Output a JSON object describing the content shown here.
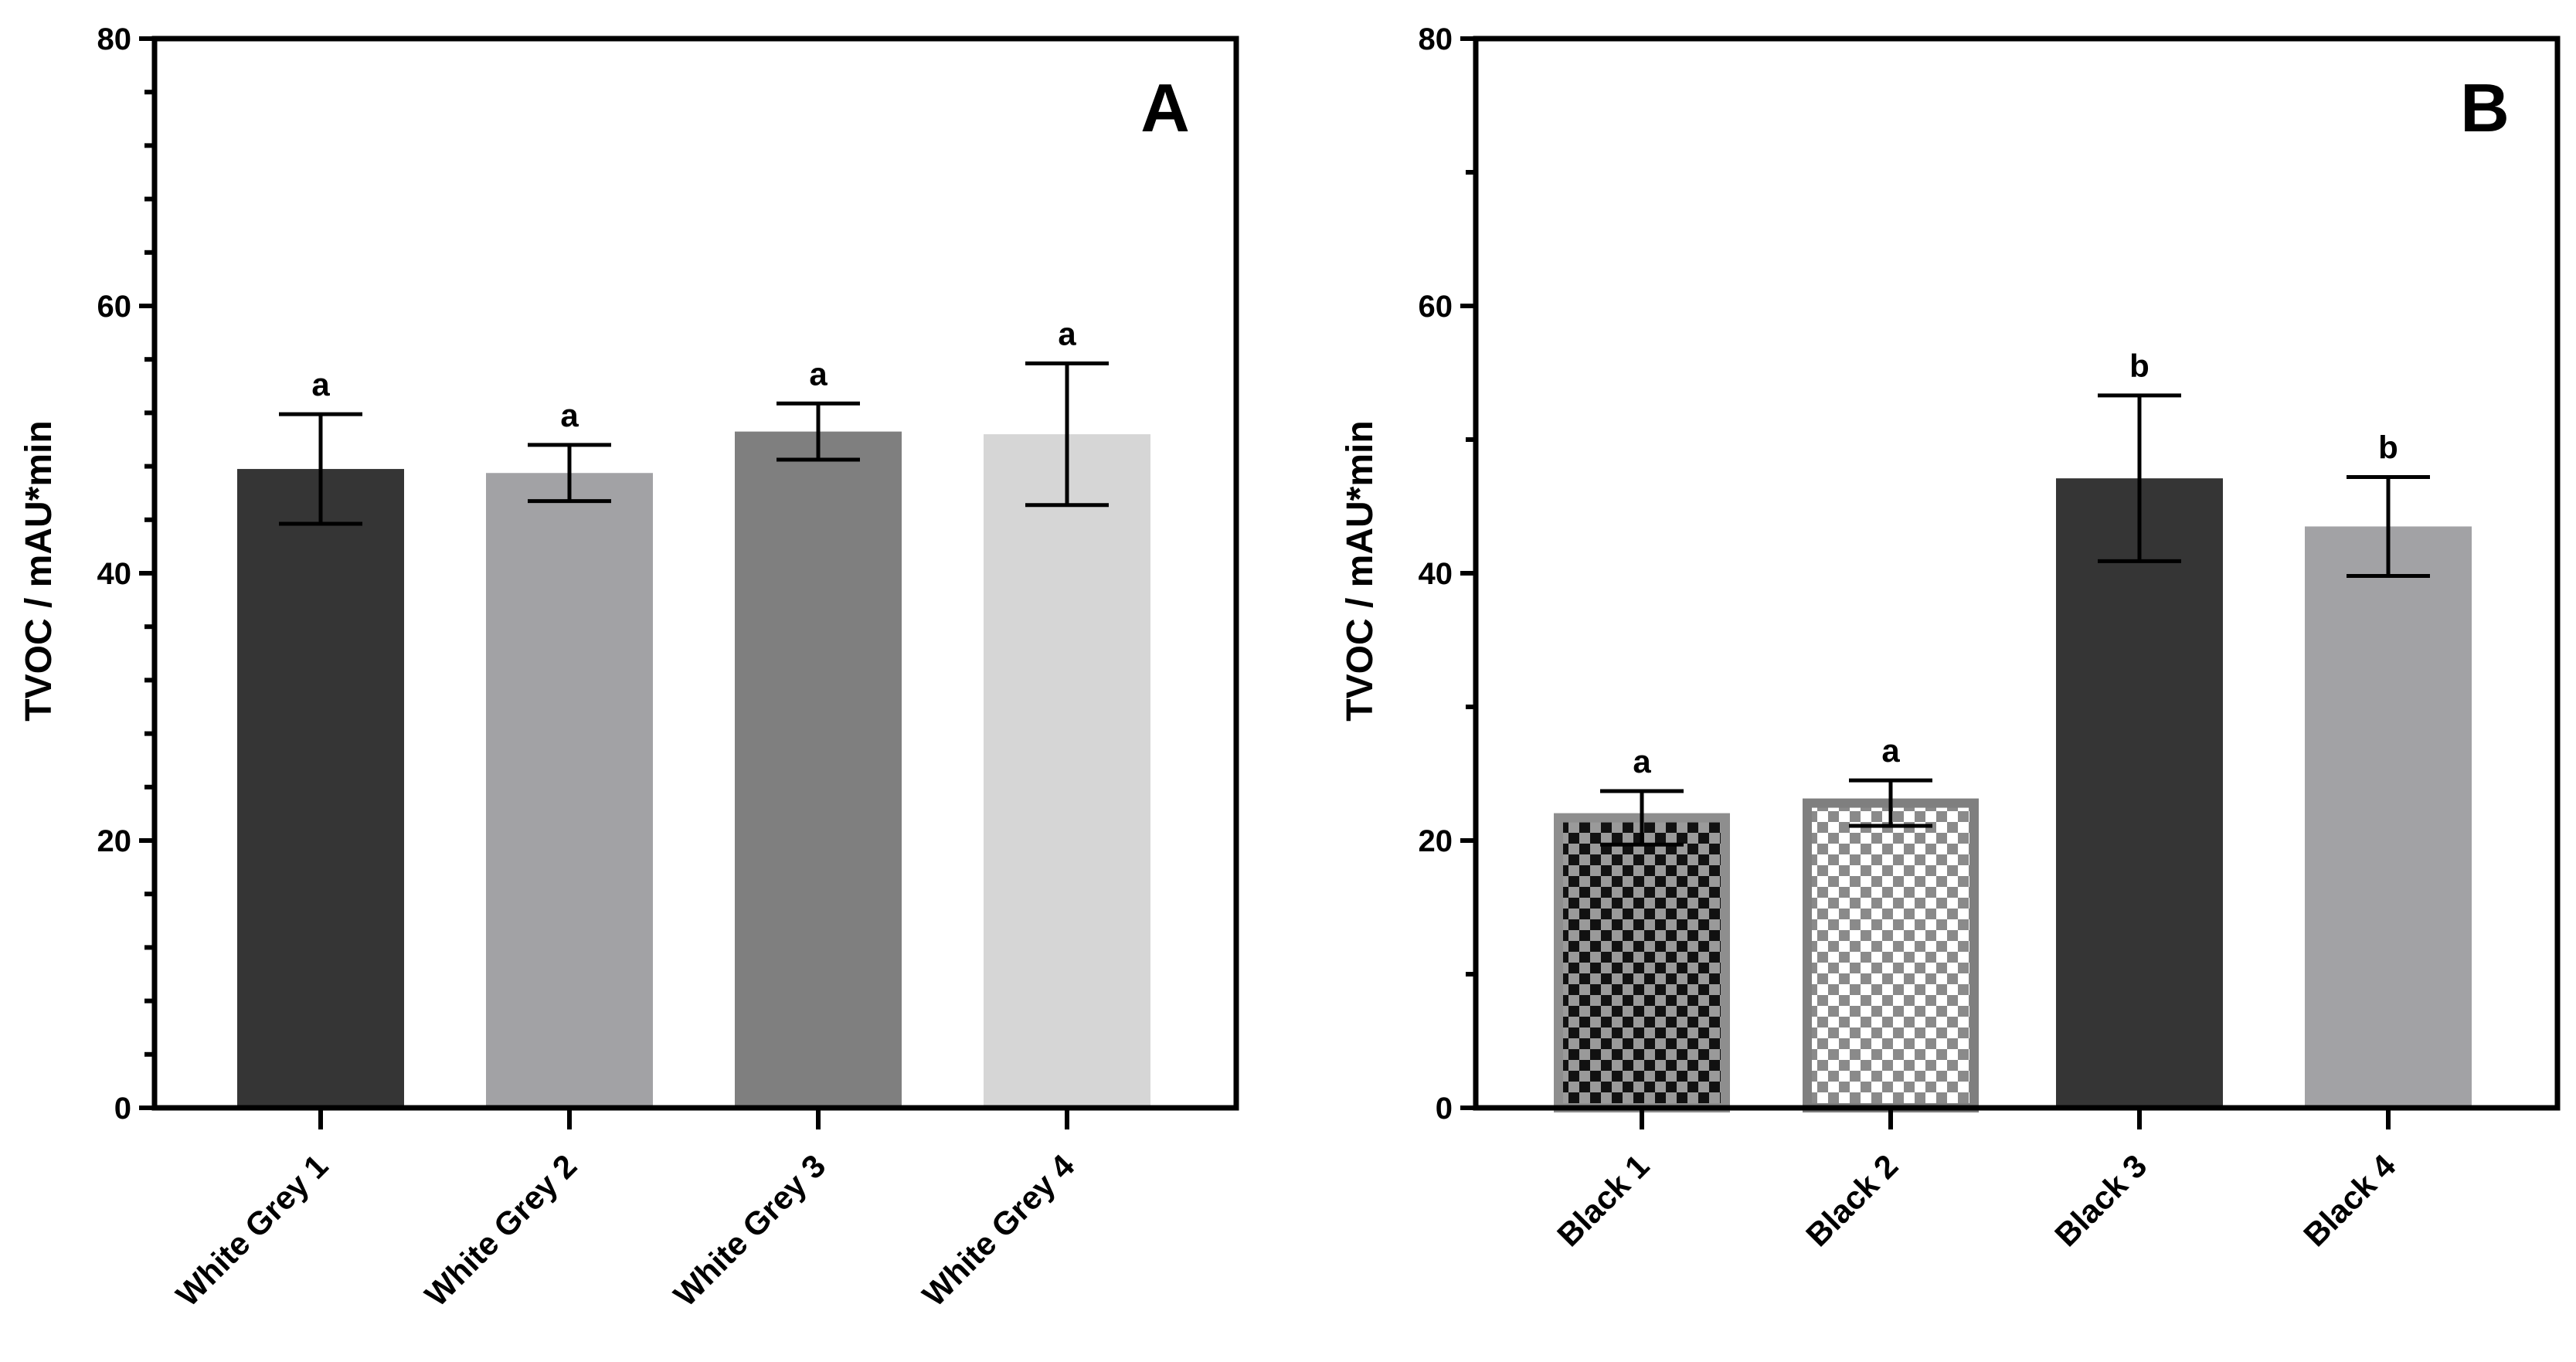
{
  "chart_data": [
    {
      "panel": "A",
      "type": "bar",
      "ylabel": "TVOC / mAU*min",
      "xlabel": "",
      "ylim": [
        0,
        80
      ],
      "yticks": [
        0,
        20,
        40,
        60,
        80
      ],
      "minor_ticks_per_major": 5,
      "categories": [
        "White Grey 1",
        "White Grey 2",
        "White Grey 3",
        "White Grey 4"
      ],
      "values": [
        47.8,
        47.5,
        50.6,
        50.4
      ],
      "errors": [
        4.1,
        2.1,
        2.1,
        5.3
      ],
      "significance": [
        "a",
        "a",
        "a",
        "a"
      ],
      "colors": [
        "#353535",
        "#a2a2a5",
        "#7f7f7f",
        "#d6d6d6"
      ],
      "patterns": [
        "solid",
        "solid",
        "solid",
        "solid"
      ]
    },
    {
      "panel": "B",
      "type": "bar",
      "ylabel": "TVOC / mAU*min",
      "xlabel": "",
      "ylim": [
        0,
        80
      ],
      "yticks": [
        0,
        20,
        40,
        60,
        80
      ],
      "minor_ticks_per_major": 2,
      "categories": [
        "Black 1",
        "Black 2",
        "Black 3",
        "Black 4"
      ],
      "values": [
        21.7,
        22.8,
        47.1,
        43.5
      ],
      "errors": [
        2.0,
        1.7,
        6.2,
        3.7
      ],
      "significance": [
        "a",
        "a",
        "b",
        "b"
      ],
      "colors": [
        "#8e8e8e",
        "#7f7f7f",
        "#353535",
        "#a2a2a5"
      ],
      "patterns": [
        "checker-dark",
        "checker-light",
        "solid",
        "solid"
      ]
    }
  ]
}
